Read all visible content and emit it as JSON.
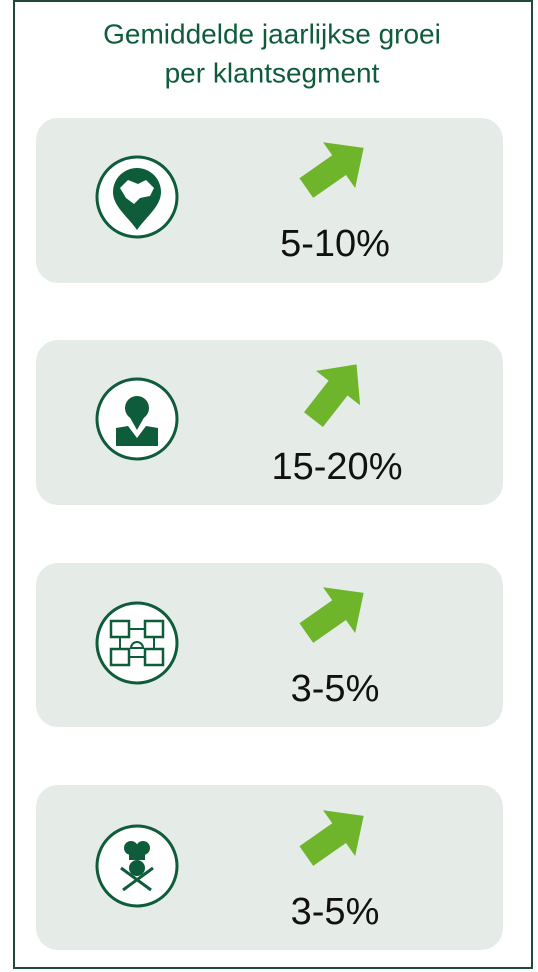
{
  "title": [
    "Gemiddelde jaarlijkse groei",
    "per klantsegment"
  ],
  "segments": [
    {
      "growth": "5-10%"
    },
    {
      "growth": "15-20%"
    },
    {
      "growth": "3-5%"
    },
    {
      "growth": "3-5%"
    }
  ]
}
